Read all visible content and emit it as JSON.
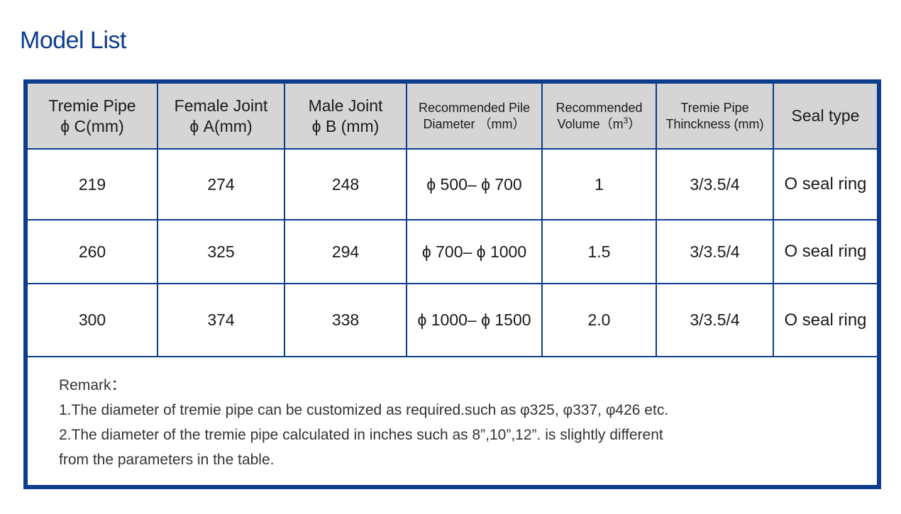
{
  "page": {
    "title": "Model List"
  },
  "table": {
    "headers": [
      {
        "line1": "Tremie Pipe",
        "line2": "ϕ C(mm)"
      },
      {
        "line1": "Female Joint",
        "line2": "ϕ A(mm)"
      },
      {
        "line1": "Male Joint",
        "line2": "ϕ B (mm)"
      },
      {
        "line1": "Recommended Pile",
        "line2": "Diameter （mm）"
      },
      {
        "line1": "Recommended",
        "line2_prefix": "Volume（m",
        "line2_sup": "3",
        "line2_suffix": "）"
      },
      {
        "line1": "Tremie Pipe",
        "line2": "Thinckness (mm)"
      },
      {
        "line1": "Seal type"
      }
    ],
    "rows": [
      [
        "219",
        "274",
        "248",
        "ϕ 500– ϕ 700",
        "1",
        "3/3.5/4",
        "O seal ring"
      ],
      [
        "260",
        "325",
        "294",
        "ϕ 700– ϕ 1000",
        "1.5",
        "3/3.5/4",
        "O seal ring"
      ],
      [
        "300",
        "374",
        "338",
        "ϕ 1000– ϕ 1500",
        "2.0",
        "3/3.5/4",
        "O seal ring"
      ]
    ]
  },
  "remark": {
    "label": "Remark：",
    "line1": "1.The diameter of tremie pipe can be customized as required.such as φ325, φ337, φ426 etc.",
    "line2": "2.The diameter of the tremie pipe calculated in inches such as 8”,10”,12”. is slightly different",
    "line3": "from the parameters in the table."
  },
  "colors": {
    "accent": "#0c3c8c",
    "header_bg": "#d5d5d5"
  }
}
